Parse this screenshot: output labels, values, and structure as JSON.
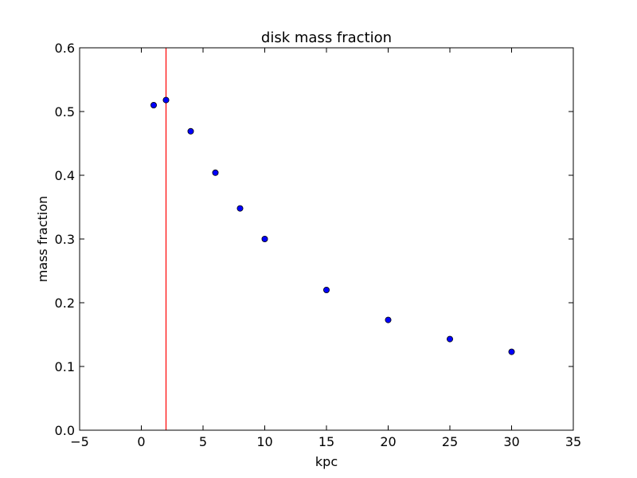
{
  "chart_data": {
    "type": "scatter",
    "title": "disk mass fraction",
    "xlabel": "kpc",
    "ylabel": "mass fraction",
    "xlim": [
      -5,
      35
    ],
    "ylim": [
      0,
      0.6
    ],
    "xticks": [
      -5,
      0,
      5,
      10,
      15,
      20,
      25,
      30,
      35
    ],
    "xtick_labels": [
      "−5",
      "0",
      "5",
      "10",
      "15",
      "20",
      "25",
      "30",
      "35"
    ],
    "yticks": [
      0.0,
      0.1,
      0.2,
      0.3,
      0.4,
      0.5,
      0.6
    ],
    "ytick_labels": [
      "0.0",
      "0.1",
      "0.2",
      "0.3",
      "0.4",
      "0.5",
      "0.6"
    ],
    "grid": false,
    "legend": "none",
    "series": [
      {
        "x": [
          1,
          2,
          4,
          6,
          8,
          10,
          15,
          20,
          25,
          30
        ],
        "y": [
          0.51,
          0.518,
          0.469,
          0.404,
          0.348,
          0.3,
          0.22,
          0.173,
          0.143,
          0.123
        ],
        "color": "#0000ff",
        "marker": "circle"
      }
    ],
    "vlines": [
      {
        "x": 2,
        "color": "#ff0000"
      }
    ]
  }
}
